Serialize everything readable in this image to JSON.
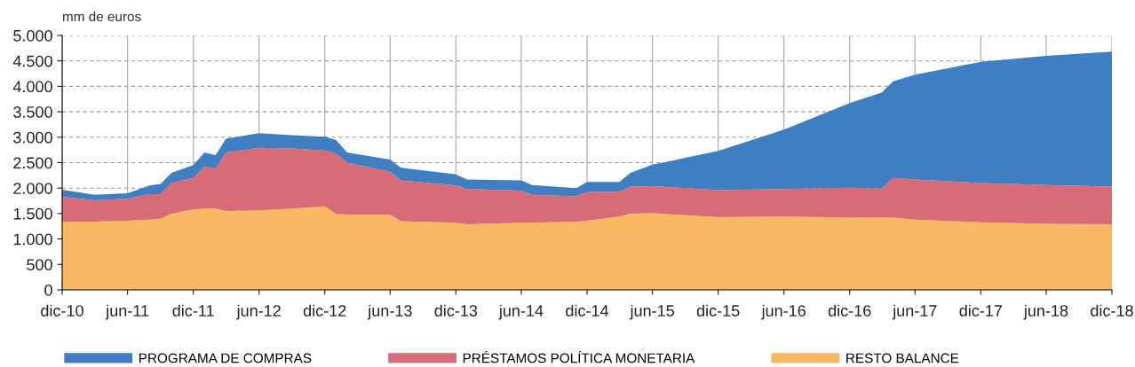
{
  "chart_data": {
    "type": "area",
    "stacked": true,
    "ylabel": "mm de euros",
    "x": [
      "2010-12",
      "2011-03",
      "2011-06",
      "2011-08",
      "2011-09",
      "2011-10",
      "2011-12",
      "2012-01",
      "2012-02",
      "2012-03",
      "2012-06",
      "2012-09",
      "2012-12",
      "2013-01",
      "2013-02",
      "2013-06",
      "2013-07",
      "2013-12",
      "2014-01",
      "2014-06",
      "2014-07",
      "2014-11",
      "2014-12",
      "2015-03",
      "2015-04",
      "2015-06",
      "2015-12",
      "2016-06",
      "2016-12",
      "2017-03",
      "2017-04",
      "2017-06",
      "2017-12",
      "2018-06",
      "2018-12"
    ],
    "series": [
      {
        "name": "RESTO BALANCE",
        "color": "#fab763",
        "values": [
          1340,
          1340,
          1360,
          1380,
          1400,
          1500,
          1580,
          1600,
          1600,
          1550,
          1560,
          1600,
          1640,
          1500,
          1480,
          1480,
          1350,
          1320,
          1290,
          1320,
          1320,
          1340,
          1360,
          1440,
          1500,
          1510,
          1430,
          1440,
          1420,
          1420,
          1420,
          1380,
          1330,
          1300,
          1290
        ]
      },
      {
        "name": "PRÉSTAMOS POLÍTICA MONETARIA",
        "color": "#d86b78",
        "values": [
          490,
          420,
          430,
          500,
          480,
          600,
          620,
          820,
          780,
          1150,
          1230,
          1180,
          1100,
          1180,
          1020,
          840,
          800,
          730,
          690,
          630,
          550,
          500,
          560,
          490,
          530,
          530,
          530,
          540,
          590,
          570,
          780,
          790,
          770,
          760,
          740
        ]
      },
      {
        "name": "PROGRAMA DE COMPRAS",
        "color": "#3f7fc1",
        "values": [
          140,
          110,
          110,
          170,
          200,
          200,
          250,
          280,
          270,
          270,
          290,
          260,
          270,
          270,
          200,
          240,
          250,
          220,
          190,
          200,
          190,
          160,
          200,
          190,
          270,
          420,
          770,
          1170,
          1660,
          1890,
          1900,
          2060,
          2380,
          2540,
          2650
        ]
      }
    ],
    "xlim": [
      "2010-12",
      "2018-12"
    ],
    "xticks": [
      {
        "value": "2010-12",
        "label": "dic-10"
      },
      {
        "value": "2011-06",
        "label": "jun-11"
      },
      {
        "value": "2011-12",
        "label": "dic-11"
      },
      {
        "value": "2012-06",
        "label": "jun-12"
      },
      {
        "value": "2012-12",
        "label": "dic-12"
      },
      {
        "value": "2013-06",
        "label": "jun-13"
      },
      {
        "value": "2013-12",
        "label": "dic-13"
      },
      {
        "value": "2014-06",
        "label": "jun-14"
      },
      {
        "value": "2014-12",
        "label": "dic-14"
      },
      {
        "value": "2015-06",
        "label": "jun-15"
      },
      {
        "value": "2015-12",
        "label": "dic-15"
      },
      {
        "value": "2016-06",
        "label": "jun-16"
      },
      {
        "value": "2016-12",
        "label": "dic-16"
      },
      {
        "value": "2017-06",
        "label": "jun-17"
      },
      {
        "value": "2017-12",
        "label": "dic-17"
      },
      {
        "value": "2018-06",
        "label": "jun-18"
      },
      {
        "value": "2018-12",
        "label": "dic-18"
      }
    ],
    "ylim": [
      0,
      5000
    ],
    "yticks": [
      0,
      {
        "value": 500,
        "label": "500"
      },
      {
        "value": 1000,
        "label": "1.000"
      },
      {
        "value": 1500,
        "label": "1.500"
      },
      {
        "value": 2000,
        "label": "2.000"
      },
      {
        "value": 2500,
        "label": "2.500"
      },
      {
        "value": 3000,
        "label": "3.000"
      },
      {
        "value": 3500,
        "label": "3.500"
      },
      {
        "value": 4000,
        "label": "4.000"
      },
      {
        "value": 4500,
        "label": "4.500"
      },
      {
        "value": 5000,
        "label": "5.000"
      }
    ],
    "grid": true,
    "legend": "bottom"
  }
}
